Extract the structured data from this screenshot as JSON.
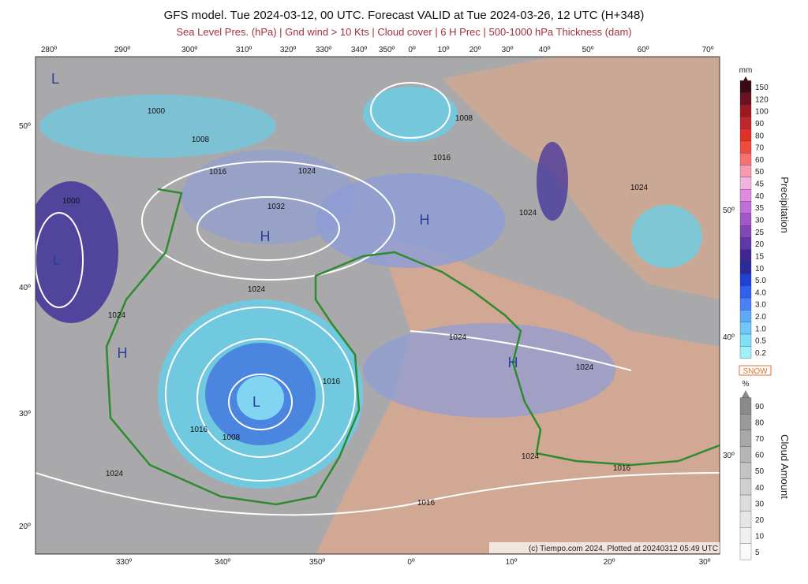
{
  "header": {
    "title": "GFS model. Tue 2024-03-12, 00 UTC. Forecast VALID at Tue 2024-03-26, 12 UTC (H+348)",
    "subtitle": "Sea Level Pres. (hPa) | Gnd wind > 10 Kts | Cloud cover | 6 H Prec | 500-1000 hPa Thickness (dam)"
  },
  "map": {
    "top_labels": [
      "280º",
      "290º",
      "300º",
      "310º",
      "320º",
      "330º",
      "340º",
      "350º",
      "0º",
      "10º",
      "20º",
      "30º",
      "40º",
      "50º",
      "60º",
      "70º"
    ],
    "bottom_labels": [
      "330º",
      "340º",
      "350º",
      "0º",
      "10º",
      "20º",
      "30º"
    ],
    "left_labels": [
      "50º",
      "40º",
      "30º",
      "20º"
    ],
    "right_labels": [
      "50º",
      "40º",
      "30º"
    ],
    "pressure_labels": [
      "1000",
      "1008",
      "1016",
      "1024",
      "1032",
      "1000",
      "1024",
      "1024",
      "1016",
      "1016",
      "1008",
      "1024",
      "1016",
      "1008",
      "1024",
      "1024",
      "1024",
      "1024",
      "1024",
      "1016",
      "1016"
    ],
    "highs_lows": [
      "H",
      "H",
      "H",
      "H",
      "L",
      "L",
      "L"
    ],
    "credit": "(c) Tiempo.com 2024. Plotted at 20240312 05:49 UTC"
  },
  "precipitation_legend": {
    "unit": "mm",
    "title": "Precipitation",
    "labels": [
      "150",
      "120",
      "100",
      "90",
      "80",
      "70",
      "60",
      "50",
      "45",
      "40",
      "35",
      "30",
      "25",
      "20",
      "15",
      "10",
      "5.0",
      "4.0",
      "3.0",
      "2.0",
      "1.0",
      "0.5",
      "0.2"
    ],
    "colors": [
      "#3a0a14",
      "#6b1220",
      "#9a1a22",
      "#c0262a",
      "#e0302a",
      "#f04a3a",
      "#f87070",
      "#f89ab0",
      "#f0b4e0",
      "#e08ae0",
      "#c070d8",
      "#a058c8",
      "#8048b8",
      "#6038a8",
      "#402890",
      "#2a2a9a",
      "#2040d8",
      "#3060f0",
      "#4a80f8",
      "#60a8f8",
      "#70c8f8",
      "#80e0f8",
      "#a0f0f8"
    ],
    "snow": "SNOW"
  },
  "cloud_legend": {
    "unit": "%",
    "title": "Cloud Amount",
    "labels": [
      "90",
      "80",
      "70",
      "60",
      "50",
      "40",
      "30",
      "20",
      "10",
      "5"
    ],
    "colors": [
      "#8a8a8a",
      "#9a9a9a",
      "#a8a8a8",
      "#b6b6b6",
      "#c4c4c4",
      "#d0d0d0",
      "#dcdcdc",
      "#e6e6e6",
      "#f0f0f0",
      "#fafafa"
    ]
  }
}
